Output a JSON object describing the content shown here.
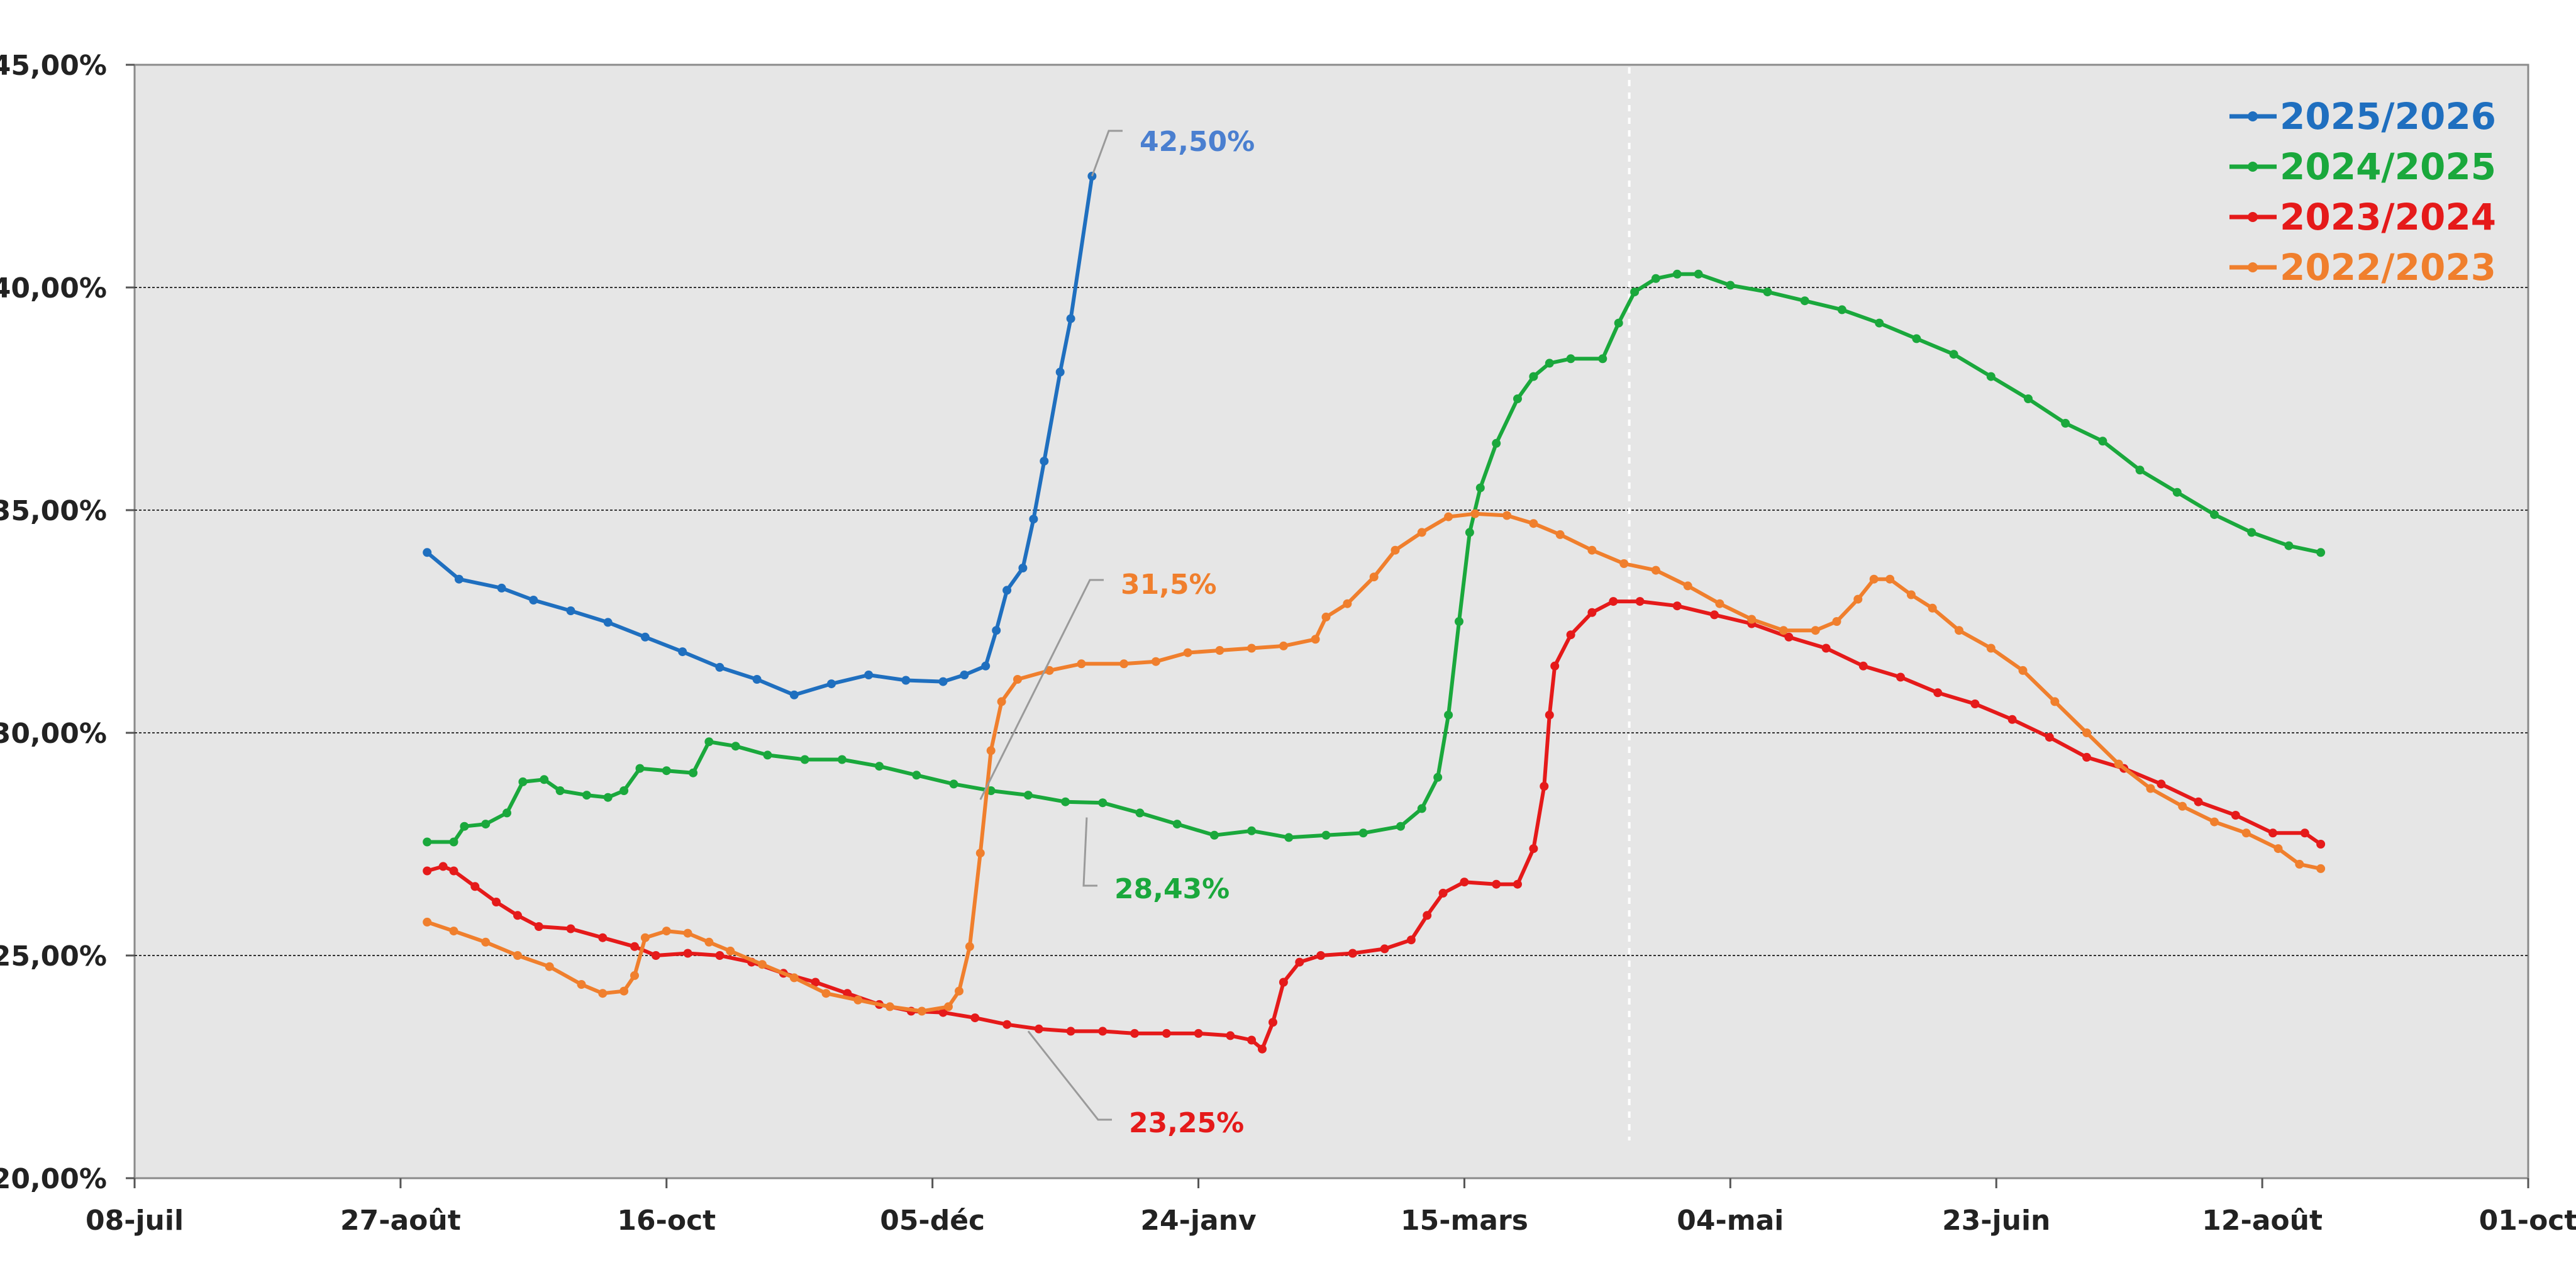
{
  "chart_data": {
    "type": "line",
    "title": "",
    "xlabel": "",
    "ylabel": "",
    "ylim": [
      0.2,
      0.45
    ],
    "xlim": [
      "08-juil",
      "01-oct"
    ],
    "x_unit": "days from 08-juil",
    "y_ticks": [
      0.2,
      0.25,
      0.3,
      0.35,
      0.4,
      0.45
    ],
    "y_tick_labels": [
      "20,00%",
      "25,00%",
      "30,00%",
      "35,00%",
      "40,00%",
      "45,00%"
    ],
    "x_ticks": [
      0,
      50,
      100,
      150,
      200,
      250,
      300,
      350,
      400,
      450
    ],
    "x_tick_labels": [
      "08-juil",
      "27-août",
      "16-oct",
      "05-déc",
      "24-janv",
      "15-mars",
      "04-mai",
      "23-juin",
      "12-août",
      "01-oct"
    ],
    "grid": "horizontal dotted",
    "legend_position": "top-right",
    "vertical_marker_x": 281,
    "series": [
      {
        "name": "2025/2026",
        "color": "#1f6fbf",
        "points": [
          [
            55,
            34.05
          ],
          [
            61,
            33.45
          ],
          [
            69,
            33.25
          ],
          [
            75,
            32.98
          ],
          [
            82,
            32.74
          ],
          [
            89,
            32.48
          ],
          [
            96,
            32.15
          ],
          [
            103,
            31.82
          ],
          [
            110,
            31.47
          ],
          [
            117,
            31.2
          ],
          [
            124,
            30.85
          ],
          [
            131,
            31.1
          ],
          [
            138,
            31.3
          ],
          [
            145,
            31.18
          ],
          [
            152,
            31.15
          ],
          [
            156,
            31.3
          ],
          [
            160,
            31.5
          ],
          [
            162,
            32.3
          ],
          [
            164,
            33.2
          ],
          [
            167,
            33.7
          ],
          [
            169,
            34.8
          ],
          [
            171,
            36.1
          ],
          [
            174,
            38.1
          ],
          [
            176,
            39.3
          ],
          [
            180,
            42.5
          ]
        ]
      },
      {
        "name": "2024/2025",
        "color": "#1aa83c",
        "points": [
          [
            55,
            27.55
          ],
          [
            60,
            27.55
          ],
          [
            62,
            27.9
          ],
          [
            66,
            27.95
          ],
          [
            70,
            28.2
          ],
          [
            73,
            28.9
          ],
          [
            77,
            28.95
          ],
          [
            80,
            28.7
          ],
          [
            85,
            28.6
          ],
          [
            89,
            28.55
          ],
          [
            92,
            28.7
          ],
          [
            95,
            29.2
          ],
          [
            100,
            29.15
          ],
          [
            105,
            29.1
          ],
          [
            108,
            29.8
          ],
          [
            113,
            29.7
          ],
          [
            119,
            29.5
          ],
          [
            126,
            29.4
          ],
          [
            133,
            29.4
          ],
          [
            140,
            29.25
          ],
          [
            147,
            29.05
          ],
          [
            154,
            28.85
          ],
          [
            161,
            28.7
          ],
          [
            168,
            28.6
          ],
          [
            175,
            28.45
          ],
          [
            182,
            28.43
          ],
          [
            189,
            28.2
          ],
          [
            196,
            27.95
          ],
          [
            203,
            27.7
          ],
          [
            210,
            27.8
          ],
          [
            217,
            27.65
          ],
          [
            224,
            27.7
          ],
          [
            231,
            27.75
          ],
          [
            238,
            27.9
          ],
          [
            242,
            28.3
          ],
          [
            245,
            29.0
          ],
          [
            247,
            30.4
          ],
          [
            249,
            32.5
          ],
          [
            251,
            34.5
          ],
          [
            253,
            35.5
          ],
          [
            256,
            36.5
          ],
          [
            260,
            37.5
          ],
          [
            263,
            38.0
          ],
          [
            266,
            38.3
          ],
          [
            270,
            38.4
          ],
          [
            276,
            38.4
          ],
          [
            279,
            39.2
          ],
          [
            282,
            39.9
          ],
          [
            286,
            40.2
          ],
          [
            290,
            40.3
          ],
          [
            294,
            40.3
          ],
          [
            300,
            40.05
          ],
          [
            307,
            39.9
          ],
          [
            314,
            39.7
          ],
          [
            321,
            39.5
          ],
          [
            328,
            39.2
          ],
          [
            335,
            38.85
          ],
          [
            342,
            38.5
          ],
          [
            349,
            38.0
          ],
          [
            356,
            37.5
          ],
          [
            363,
            36.95
          ],
          [
            370,
            36.55
          ],
          [
            377,
            35.9
          ],
          [
            384,
            35.4
          ],
          [
            391,
            34.9
          ],
          [
            398,
            34.5
          ],
          [
            405,
            34.2
          ],
          [
            411,
            34.05
          ]
        ]
      },
      {
        "name": "2023/2024",
        "color": "#e51a1a",
        "points": [
          [
            55,
            26.9
          ],
          [
            58,
            27.0
          ],
          [
            60,
            26.9
          ],
          [
            64,
            26.55
          ],
          [
            68,
            26.2
          ],
          [
            72,
            25.9
          ],
          [
            76,
            25.65
          ],
          [
            82,
            25.6
          ],
          [
            88,
            25.4
          ],
          [
            94,
            25.2
          ],
          [
            98,
            25.0
          ],
          [
            104,
            25.05
          ],
          [
            110,
            25.0
          ],
          [
            116,
            24.85
          ],
          [
            122,
            24.6
          ],
          [
            128,
            24.4
          ],
          [
            134,
            24.15
          ],
          [
            140,
            23.9
          ],
          [
            146,
            23.75
          ],
          [
            152,
            23.72
          ],
          [
            158,
            23.6
          ],
          [
            164,
            23.45
          ],
          [
            170,
            23.35
          ],
          [
            176,
            23.3
          ],
          [
            182,
            23.3
          ],
          [
            188,
            23.25
          ],
          [
            194,
            23.25
          ],
          [
            200,
            23.25
          ],
          [
            206,
            23.2
          ],
          [
            210,
            23.1
          ],
          [
            212,
            22.9
          ],
          [
            214,
            23.5
          ],
          [
            216,
            24.4
          ],
          [
            219,
            24.85
          ],
          [
            223,
            25.0
          ],
          [
            229,
            25.05
          ],
          [
            235,
            25.15
          ],
          [
            240,
            25.35
          ],
          [
            243,
            25.9
          ],
          [
            246,
            26.4
          ],
          [
            250,
            26.65
          ],
          [
            256,
            26.6
          ],
          [
            260,
            26.6
          ],
          [
            263,
            27.4
          ],
          [
            265,
            28.8
          ],
          [
            266,
            30.4
          ],
          [
            267,
            31.5
          ],
          [
            270,
            32.2
          ],
          [
            274,
            32.7
          ],
          [
            278,
            32.95
          ],
          [
            283,
            32.95
          ],
          [
            290,
            32.85
          ],
          [
            297,
            32.65
          ],
          [
            304,
            32.45
          ],
          [
            311,
            32.15
          ],
          [
            318,
            31.9
          ],
          [
            325,
            31.5
          ],
          [
            332,
            31.25
          ],
          [
            339,
            30.9
          ],
          [
            346,
            30.65
          ],
          [
            353,
            30.3
          ],
          [
            360,
            29.9
          ],
          [
            367,
            29.45
          ],
          [
            374,
            29.2
          ],
          [
            381,
            28.85
          ],
          [
            388,
            28.45
          ],
          [
            395,
            28.15
          ],
          [
            402,
            27.75
          ],
          [
            408,
            27.75
          ],
          [
            411,
            27.5
          ]
        ]
      },
      {
        "name": "2022/2023",
        "color": "#f07f2d",
        "points": [
          [
            55,
            25.75
          ],
          [
            60,
            25.55
          ],
          [
            66,
            25.3
          ],
          [
            72,
            25.0
          ],
          [
            78,
            24.75
          ],
          [
            84,
            24.35
          ],
          [
            88,
            24.15
          ],
          [
            92,
            24.2
          ],
          [
            94,
            24.55
          ],
          [
            96,
            25.4
          ],
          [
            100,
            25.55
          ],
          [
            104,
            25.5
          ],
          [
            108,
            25.3
          ],
          [
            112,
            25.1
          ],
          [
            118,
            24.8
          ],
          [
            124,
            24.5
          ],
          [
            130,
            24.15
          ],
          [
            136,
            24.0
          ],
          [
            142,
            23.85
          ],
          [
            148,
            23.75
          ],
          [
            153,
            23.85
          ],
          [
            155,
            24.2
          ],
          [
            157,
            25.2
          ],
          [
            159,
            27.3
          ],
          [
            161,
            29.6
          ],
          [
            163,
            30.7
          ],
          [
            166,
            31.2
          ],
          [
            172,
            31.4
          ],
          [
            178,
            31.55
          ],
          [
            186,
            31.55
          ],
          [
            192,
            31.6
          ],
          [
            198,
            31.8
          ],
          [
            204,
            31.85
          ],
          [
            210,
            31.9
          ],
          [
            216,
            31.95
          ],
          [
            222,
            32.1
          ],
          [
            224,
            32.6
          ],
          [
            228,
            32.9
          ],
          [
            233,
            33.5
          ],
          [
            237,
            34.1
          ],
          [
            242,
            34.5
          ],
          [
            247,
            34.85
          ],
          [
            252,
            34.92
          ],
          [
            258,
            34.88
          ],
          [
            263,
            34.7
          ],
          [
            268,
            34.45
          ],
          [
            274,
            34.1
          ],
          [
            280,
            33.8
          ],
          [
            286,
            33.65
          ],
          [
            292,
            33.3
          ],
          [
            298,
            32.9
          ],
          [
            304,
            32.55
          ],
          [
            310,
            32.3
          ],
          [
            316,
            32.3
          ],
          [
            320,
            32.5
          ],
          [
            324,
            33.0
          ],
          [
            327,
            33.45
          ],
          [
            330,
            33.45
          ],
          [
            334,
            33.1
          ],
          [
            338,
            32.8
          ],
          [
            343,
            32.3
          ],
          [
            349,
            31.9
          ],
          [
            355,
            31.4
          ],
          [
            361,
            30.7
          ],
          [
            367,
            30.0
          ],
          [
            373,
            29.3
          ],
          [
            379,
            28.75
          ],
          [
            385,
            28.35
          ],
          [
            391,
            28.0
          ],
          [
            397,
            27.75
          ],
          [
            403,
            27.4
          ],
          [
            407,
            27.05
          ],
          [
            411,
            26.95
          ]
        ]
      }
    ],
    "annotations": [
      {
        "text": "42,50%",
        "color": "#4a7fd0",
        "series": "2025/2026"
      },
      {
        "text": "31,5%",
        "color": "#f07f2d",
        "series": "2022/2023"
      },
      {
        "text": "28,43%",
        "color": "#1aa83c",
        "series": "2024/2025"
      },
      {
        "text": "23,25%",
        "color": "#e51a1a",
        "series": "2023/2024"
      }
    ]
  }
}
